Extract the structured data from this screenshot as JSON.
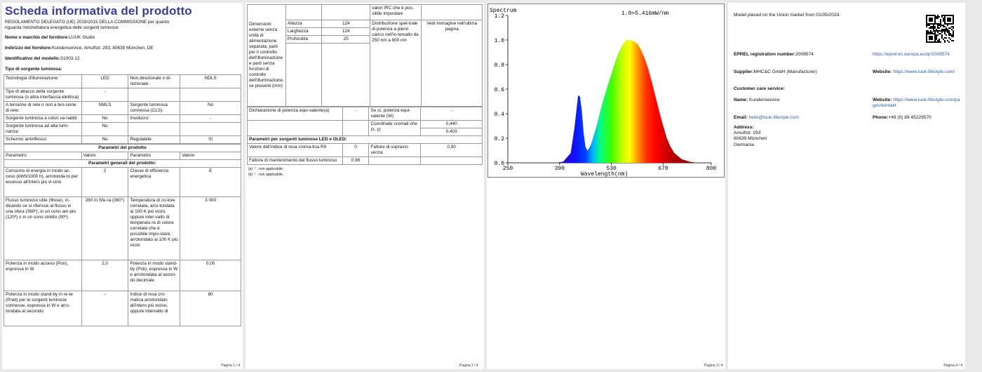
{
  "page1": {
    "title": "Scheda informativa del prodotto",
    "regulation_line1": "REGOLAMENTO DELEGATO (UE) 2019/2015 DELLA COMMISSIONE per quanto",
    "regulation_line2": "riguarda l'etichettatura energetica delle sorgenti luminose",
    "brand_label": "Nome o marchio del fornitore:",
    "brand_value": "LUUK Studio",
    "address_label": "Indirizzo del fornitore:",
    "address_value": "Kundenservice, Amulfstr. 293, 80639 München, DE",
    "model_label": "Identificativo del modello:",
    "model_value": "S1003-12",
    "type_label": "Tipo di sorgente luminosa:",
    "rows": [
      {
        "a": "Tecnologia d'illuminazione:",
        "b": "LED",
        "c": "Non direzionale o di-rezionale:",
        "d": "NDLS"
      },
      {
        "a": "Tipo di attacco della sorgente luminosa (o altra interfaccia elettrica)",
        "b": "-",
        "c": "",
        "d": ""
      },
      {
        "a": "A tensione di rete o non a ten-sione di rete:",
        "b": "NMLS",
        "c": "Sorgente luminosa connessa (CLS):",
        "d": "No"
      },
      {
        "a": "Sorgente luminosa a colori va-nabili:",
        "b": "No",
        "c": "Involucro:",
        "d": "-"
      },
      {
        "a": "Sorgente luminosa ad alta lumi-nanza:",
        "b": "No",
        "c": "",
        "d": ""
      },
      {
        "a": "Schermo antiriflesso:",
        "b": "No",
        "c": "Regolabile:",
        "d": "Sì"
      }
    ],
    "params_header": "Parametri del prodotto",
    "col_headers": [
      "Parametro",
      "Valore",
      "Parametro",
      "Valore"
    ],
    "general_header": "Parametri generali del prodotto:",
    "params": [
      {
        "a": "Consumo di energia in modo ac-ceso (kWh/1000 h), arrotonda-to per eccesso all'intero più vi-cino",
        "b": "2",
        "c": "Classe di efficienza energetica",
        "d": "E"
      },
      {
        "a": "Flusso luminoso utile (Φuse), in-dicando se si riferisce al flusso in una sfera (360º), in un cono am-pio (120º) o in un cono stretto (90º)",
        "b": "280 in Sfe-ra (360°)",
        "c": "Temperatura di co-lore correlata, arro-tondata ai 100 K più vicini, oppure inter-vallo di temperatu-re di colore correlate che è possibile impo-stare, arrotondato ai 100 K più vicini",
        "d": "3 000"
      },
      {
        "a": "Potenza in modo acceso (Pon), espressa in W",
        "b": "2,0",
        "c": "Potenza in modo stand-by (Psb), espressa in W e arrotondata al secon-do decimale",
        "d": "0,00"
      },
      {
        "a": "Potenza in modo stand-by in re-te (Pnet) per le sorgenti luminose connesse, espressa in W e arro-tondata al secondo",
        "b": "-",
        "c": "Indice di resa cro-matica arrotondato all'intero più vicino, oppure intervallo di",
        "d": "80"
      }
    ],
    "footer": "Pagina 1 / 4"
  },
  "page2": {
    "irc_text": "valori IRC che è pos-sibile impostare",
    "dim_label": "Dimensioni esterne senza unità di alimentazione separata, parti per il controllo dell'illuminazione e parti senza funzioni di controllo dell'illuminazione, se presenti (mm)",
    "dim_rows": [
      {
        "k": "Altezza",
        "v": "124"
      },
      {
        "k": "Larghezza",
        "v": "124"
      },
      {
        "k": "Profondità",
        "v": "25"
      }
    ],
    "spd_text": "Distribuzione spet-trale di potenza a pieno carico nell'in-tervallo da 250 nm a 800 nm",
    "spd_value": "Vedi immagine nell'ultima pagina",
    "power_label": "Dichiarazione di potenza equi-valente(a)",
    "power_value": "-",
    "power_q": "Se sì, potenza equi-valente (W)",
    "power_q_value": "-",
    "coord_label": "Coordinate cromati-che (x, y)",
    "coord_x": "0,440",
    "coord_y": "0,403",
    "led_header": "Parametri per sorgenti luminose LED e OLED:",
    "r9_label": "Valore dell'indice di resa croma-tica R9",
    "r9_value": "0",
    "surv_label": "Fattore di sopravvi-venza",
    "surv_value": "0,90",
    "maint_label": "Fattore di mantenimento del flusso luminoso",
    "maint_value": "0,96",
    "note_a": "(a) '-' : non applicabile;",
    "note_b": "(b) '-' : non applicabile;",
    "footer": "Pagina 2 / 4"
  },
  "page3": {
    "footer": "Pagina 3 / 4"
  },
  "chart_data": {
    "type": "area",
    "title": "Spectrum",
    "annotation": "1.0=5.416mW/nm",
    "xlabel": "Wavelength(nm)",
    "ylabel": "",
    "xlim": [
      250,
      800
    ],
    "ylim": [
      0,
      1.2
    ],
    "x_ticks": [
      250,
      390,
      530,
      670,
      800
    ],
    "y_ticks": [
      "0.0",
      "0.2",
      "0.4",
      "0.6",
      "0.8",
      "1.0",
      "1.2"
    ],
    "grid": false,
    "series": [
      {
        "x": [
          380,
          400,
          420,
          430,
          440,
          445,
          450,
          455,
          460,
          465,
          470,
          475,
          480,
          490,
          500,
          510,
          520,
          530,
          540,
          550,
          560,
          570,
          580,
          590,
          600,
          610,
          620,
          630,
          640,
          650,
          660,
          670,
          680,
          690,
          700,
          720,
          740,
          760,
          780
        ],
        "values": [
          0.0,
          0.01,
          0.08,
          0.28,
          0.55,
          0.54,
          0.42,
          0.24,
          0.13,
          0.1,
          0.12,
          0.15,
          0.2,
          0.3,
          0.42,
          0.53,
          0.63,
          0.72,
          0.82,
          0.9,
          0.96,
          1.0,
          1.0,
          0.99,
          0.97,
          0.92,
          0.85,
          0.76,
          0.65,
          0.53,
          0.41,
          0.3,
          0.2,
          0.13,
          0.08,
          0.03,
          0.01,
          0.0,
          0.0
        ]
      }
    ]
  },
  "page4": {
    "placed": "Model placed on the Union market from 01/05/2024.",
    "eprel_label": "EPREL registration number:",
    "eprel_value": "2008574",
    "eprel_url": "https://eprel.ec.europa.eu/qr/2008574",
    "supplier_label": "Supplier:",
    "supplier_value": "MHC&C GmbH (Manufacturer)",
    "website_label": "Website:",
    "website_value": "https://www.luuk-lifestyle.com/",
    "care_label": "Customer care service:",
    "name_label": "Name:",
    "name_value": "Kundenservice",
    "website2_label": "Website:",
    "website2_value": "https://www.luuk-lifestyle.com/pages/kontakt",
    "email_label": "Email:",
    "email_value": "hello@luuk-lifestyle.com",
    "phone_label": "Phone:",
    "phone_value": "+49 (0) 89 45229570",
    "address_label": "Address:",
    "address_lines": [
      "Amulfstr. 293",
      "80639 München",
      "Germania"
    ],
    "qr_icon": "qr-code-icon",
    "footer": "Pagina 4 / 4"
  }
}
